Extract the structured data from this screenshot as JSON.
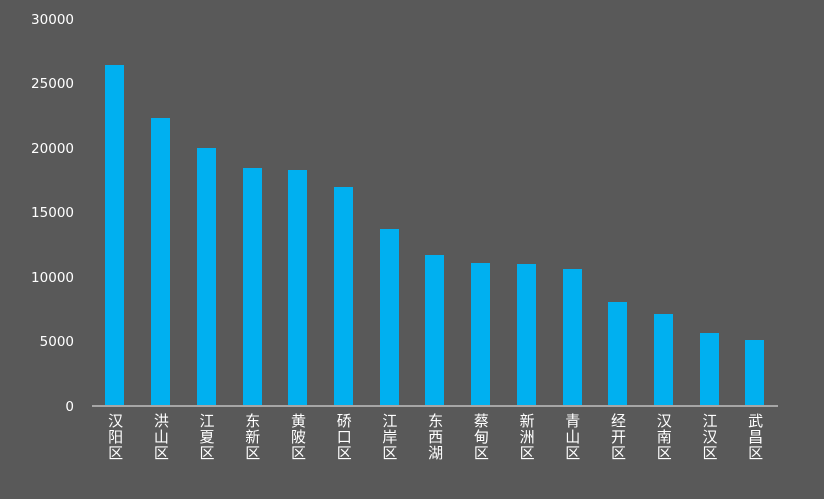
{
  "chart_data": {
    "type": "bar",
    "title": "",
    "xlabel": "",
    "ylabel": "",
    "categories": [
      "汉阳区",
      "洪山区",
      "江夏区",
      "东新区",
      "黄陂区",
      "硚口区",
      "江岸区",
      "东西湖",
      "蔡甸区",
      "新洲区",
      "青山区",
      "经开区",
      "汉南区",
      "江汉区",
      "武昌区"
    ],
    "values": [
      26500,
      22400,
      20000,
      18500,
      18300,
      17000,
      13700,
      11700,
      11100,
      11000,
      10600,
      8000,
      7100,
      5600,
      5100
    ],
    "ylim": [
      0,
      30000
    ],
    "yticks": [
      0,
      5000,
      10000,
      15000,
      20000,
      25000,
      30000
    ],
    "grid": false,
    "legend_position": "none",
    "colors": {
      "bar": "#00b0f0",
      "background": "#595959",
      "text": "#ffffff",
      "axis_line": "#a6a6a6"
    }
  }
}
